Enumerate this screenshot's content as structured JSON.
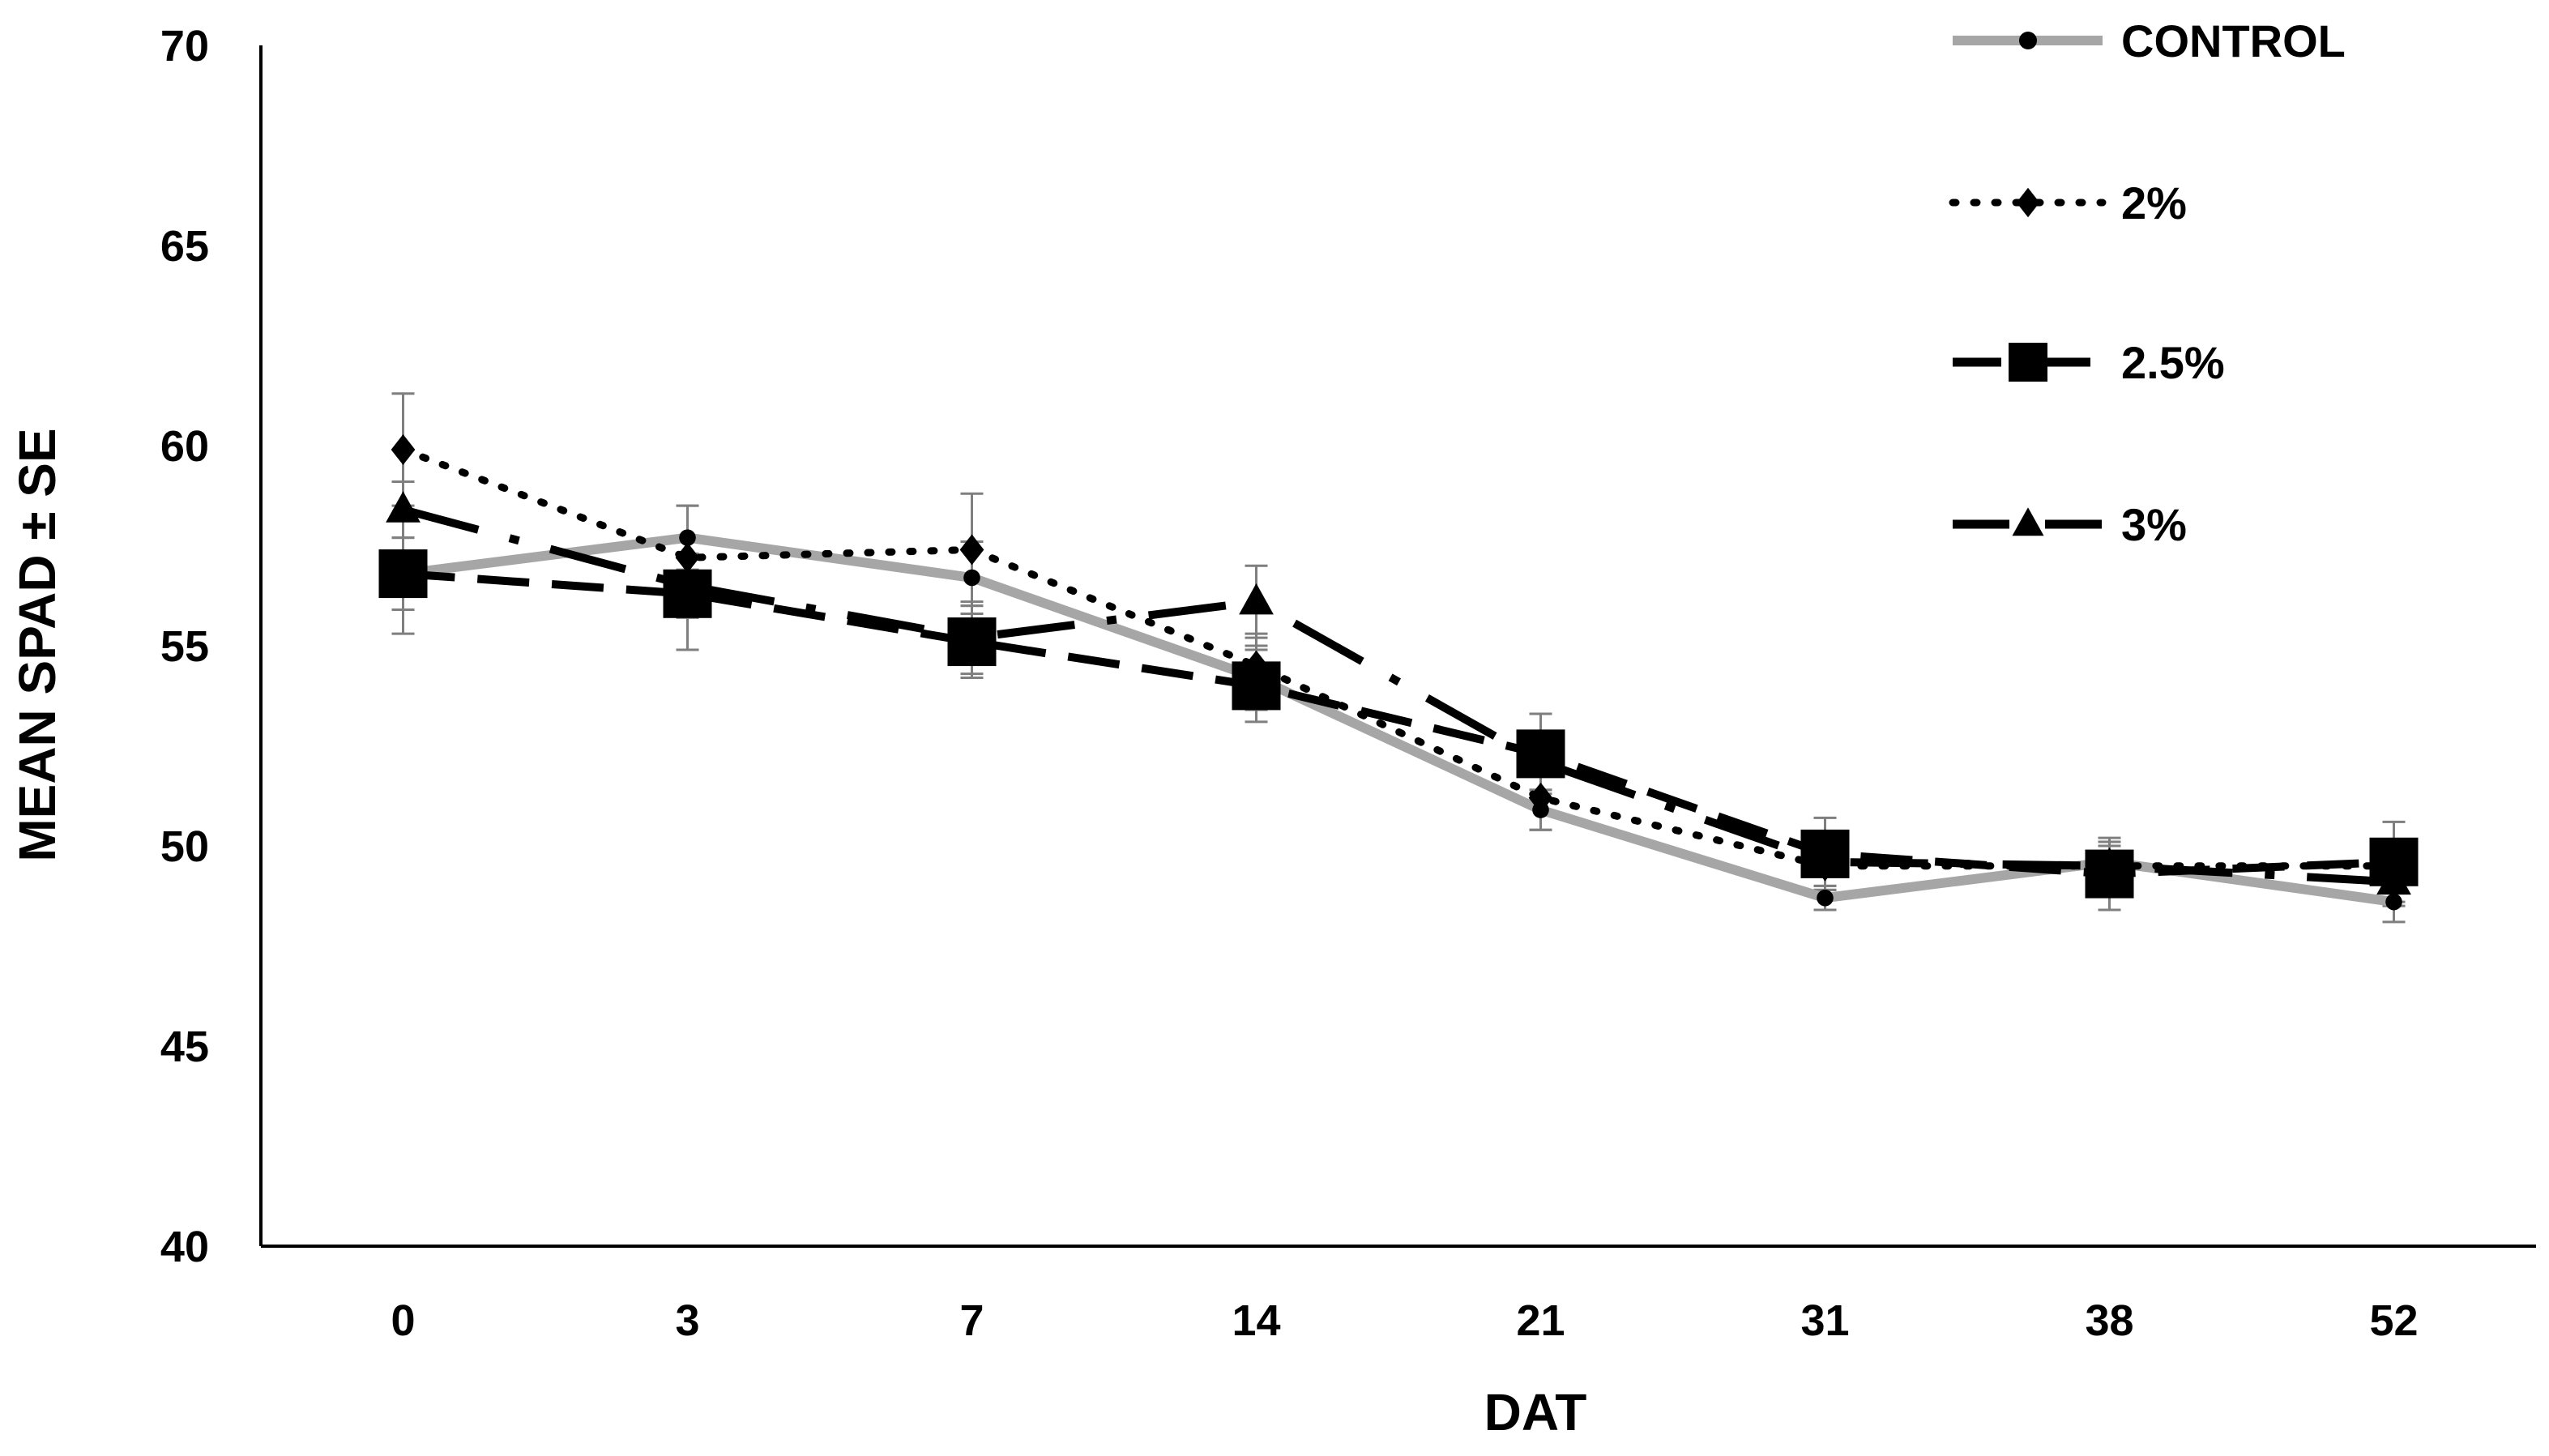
{
  "chart_data": {
    "type": "line",
    "title": "",
    "xlabel": "DAT",
    "ylabel": "MEAN SPAD ± SE",
    "categories": [
      "0",
      "3",
      "7",
      "14",
      "21",
      "31",
      "38",
      "52"
    ],
    "ylim": [
      40,
      70
    ],
    "yticks": [
      40,
      45,
      50,
      55,
      60,
      65,
      70
    ],
    "grid": false,
    "legend_position": "top-right",
    "series": [
      {
        "name": "CONTROL",
        "values": [
          56.8,
          57.7,
          56.7,
          54.2,
          50.9,
          48.7,
          49.6,
          48.6
        ],
        "error": [
          1.5,
          0.8,
          0.9,
          0.8,
          0.5,
          0.3,
          0.4,
          0.5
        ],
        "line_style": "solid",
        "marker": "circle",
        "color": "#a6a6a6"
      },
      {
        "name": "2%",
        "values": [
          59.9,
          57.2,
          57.4,
          54.5,
          51.2,
          49.5,
          49.5,
          49.5
        ],
        "error": [
          1.4,
          1.3,
          1.4,
          0.8,
          0.8,
          0.6,
          0.5,
          0.4
        ],
        "line_style": "dotted",
        "marker": "diamond",
        "color": "#000000"
      },
      {
        "name": "2.5%",
        "values": [
          56.8,
          56.3,
          55.1,
          54.0,
          52.3,
          49.8,
          49.3,
          49.6
        ],
        "error": [
          0.9,
          1.4,
          0.9,
          0.9,
          1.0,
          0.9,
          0.9,
          1.0
        ],
        "line_style": "dashed",
        "marker": "square",
        "color": "#000000"
      },
      {
        "name": "3%",
        "values": [
          58.4,
          56.5,
          55.2,
          56.1,
          52.1,
          49.6,
          49.5,
          49.1
        ],
        "error": [
          0.7,
          0.8,
          0.9,
          0.9,
          0.7,
          0.6,
          0.6,
          0.6
        ],
        "line_style": "long-dash-dot",
        "marker": "triangle",
        "color": "#000000"
      }
    ]
  }
}
